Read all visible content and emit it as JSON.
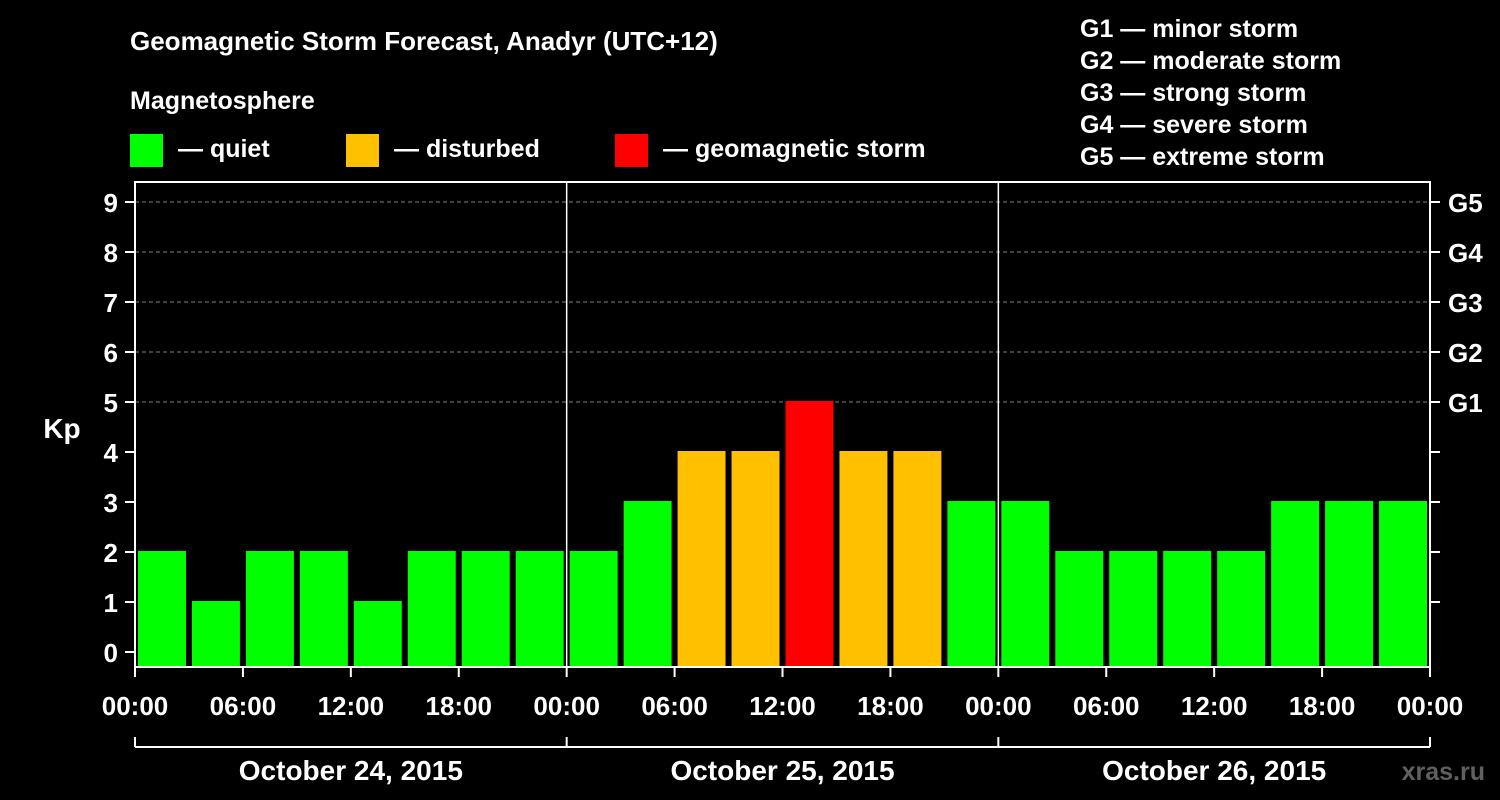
{
  "title": "Geomagnetic Storm Forecast, Anadyr (UTC+12)",
  "magnetosphere_label": "Magnetosphere",
  "status_legend": [
    {
      "label": "— quiet",
      "color": "#00ff00"
    },
    {
      "label": "— disturbed",
      "color": "#ffc000"
    },
    {
      "label": "— geomagnetic storm",
      "color": "#ff0000"
    }
  ],
  "storm_scale": [
    "G1 — minor storm",
    "G2 — moderate storm",
    "G3 — strong storm",
    "G4 — severe storm",
    "G5 — extreme storm"
  ],
  "watermark": "xras.ru",
  "colors": {
    "background": "#000000",
    "quiet": "#00ff00",
    "disturbed": "#ffc000",
    "storm": "#ff0000",
    "grid": "#808080",
    "axis": "#ffffff"
  },
  "chart_data": {
    "type": "bar",
    "ylabel": "Kp",
    "ylim": [
      0,
      9
    ],
    "yticks": [
      0,
      1,
      2,
      3,
      4,
      5,
      6,
      7,
      8,
      9
    ],
    "right_ticks": [
      {
        "value": 5,
        "label": "G1"
      },
      {
        "value": 6,
        "label": "G2"
      },
      {
        "value": 7,
        "label": "G3"
      },
      {
        "value": 8,
        "label": "G4"
      },
      {
        "value": 9,
        "label": "G5"
      }
    ],
    "grid": "horizontal dashed at Kp 5-9",
    "x_tick_labels": [
      "00:00",
      "06:00",
      "12:00",
      "18:00",
      "00:00",
      "06:00",
      "12:00",
      "18:00",
      "00:00",
      "06:00",
      "12:00",
      "18:00",
      "00:00"
    ],
    "days": [
      "October 24, 2015",
      "October 25, 2015",
      "October 26, 2015"
    ],
    "interval_hours": 3,
    "values": [
      2,
      1,
      2,
      2,
      1,
      2,
      2,
      2,
      2,
      3,
      4,
      4,
      5,
      4,
      4,
      3,
      3,
      2,
      2,
      2,
      2,
      3,
      3,
      3
    ],
    "status_thresholds": {
      "disturbed": 4,
      "storm": 5
    }
  }
}
